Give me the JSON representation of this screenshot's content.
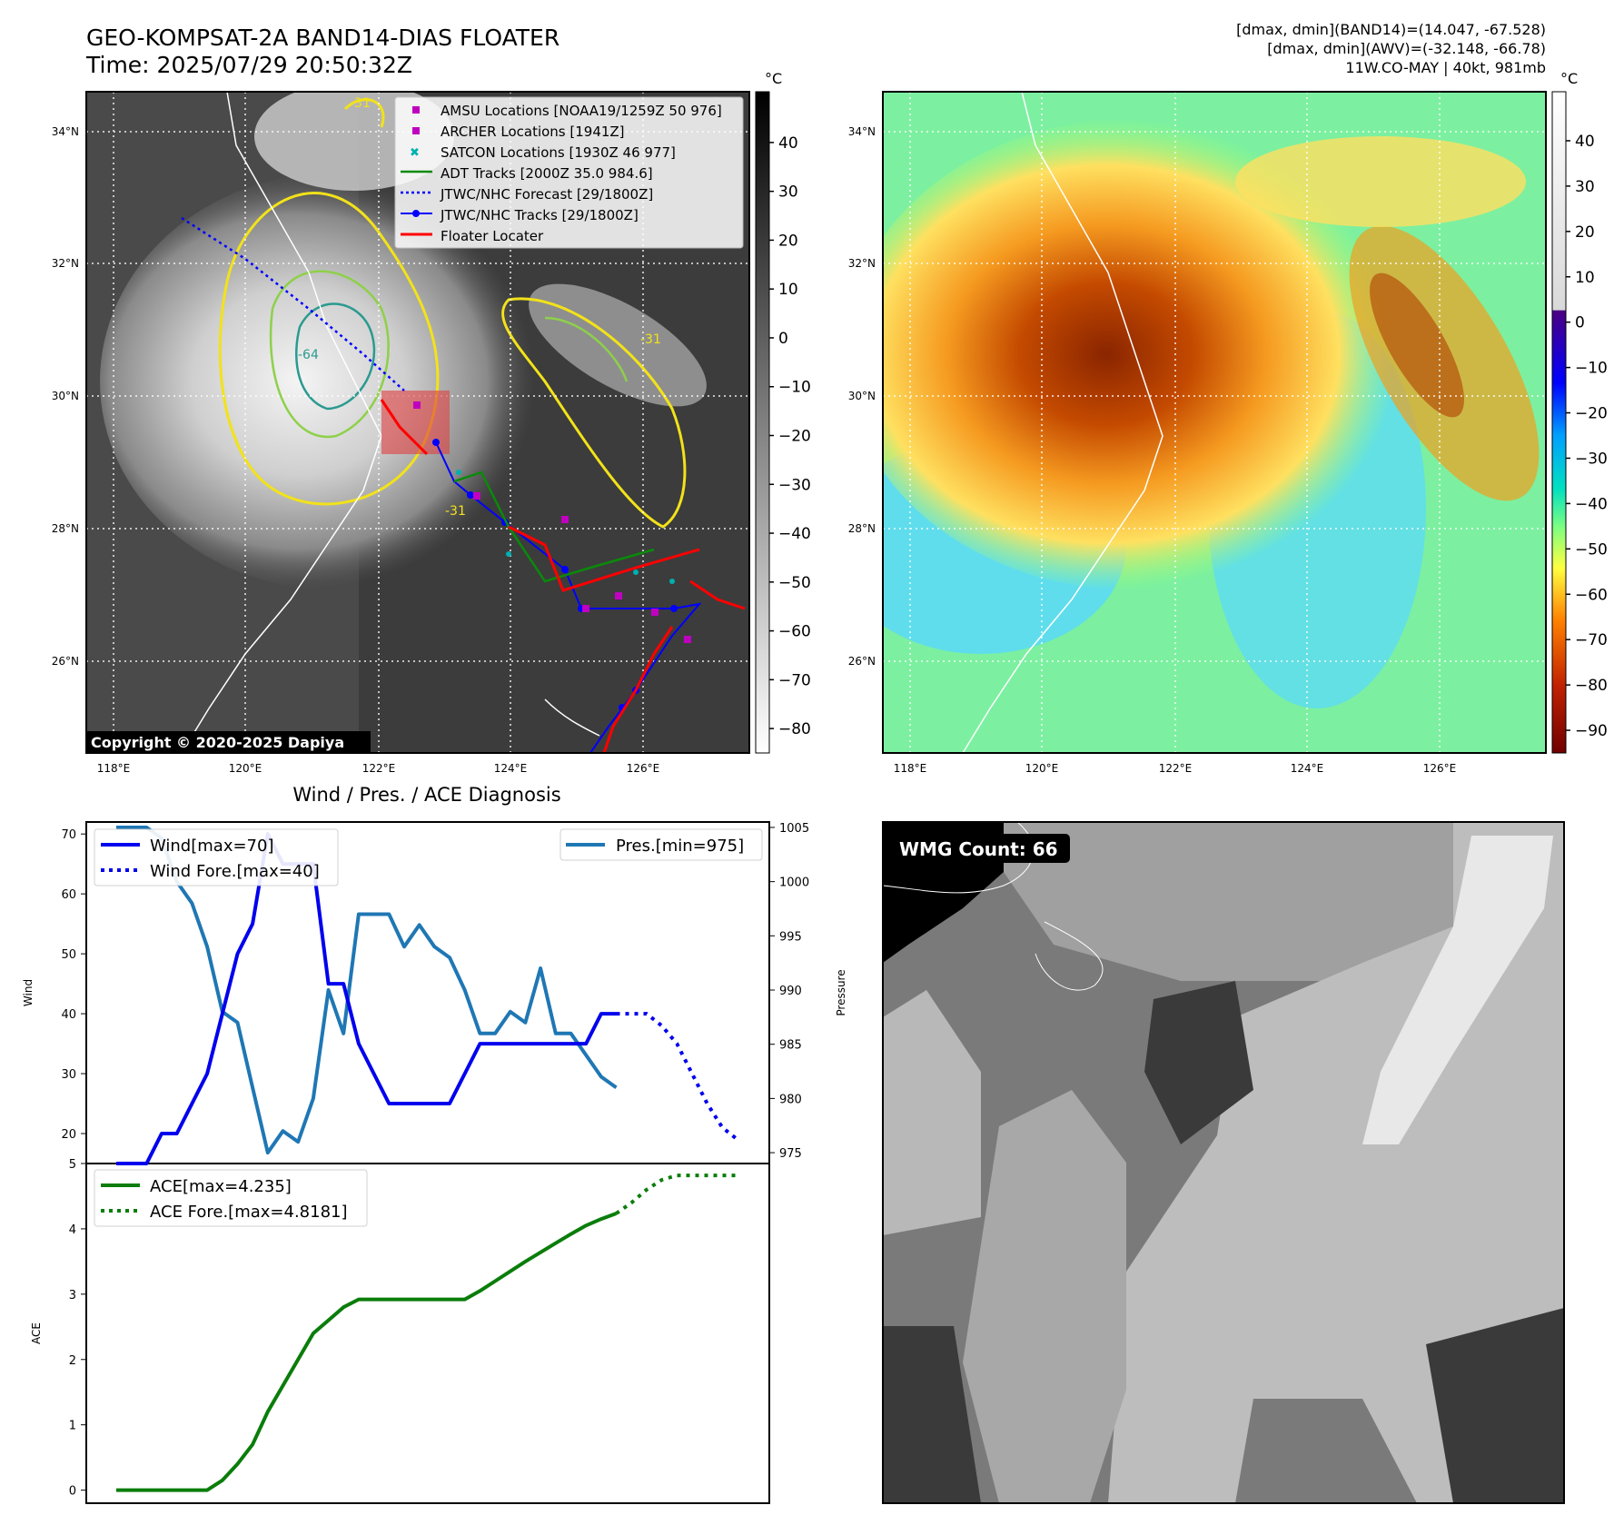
{
  "header": {
    "title": "GEO-KOMPSAT-2A BAND14-DIAS FLOATER",
    "time": "Time: 2025/07/29 20:50:32Z",
    "info_line1": "[dmax, dmin](BAND14)=(14.047, -67.528)",
    "info_line2": "[dmax, dmin](AWV)=(-32.148, -66.78)",
    "info_line3": "11W.CO-MAY | 40kt, 981mb"
  },
  "colors": {
    "wind": "#0000ee",
    "pressure": "#1f77b4",
    "ace": "#0a7d0a",
    "locator": "#ff0000",
    "amsu": "#c000c0",
    "satcon": "#00b0b0"
  },
  "map_left": {
    "cbar_unit": "°C",
    "cbar_ticks": [
      "40",
      "30",
      "20",
      "10",
      "0",
      "−10",
      "−20",
      "−30",
      "−40",
      "−50",
      "−60",
      "−70",
      "−80"
    ],
    "lat_labels": [
      "34°N",
      "32°N",
      "30°N",
      "28°N",
      "26°N"
    ],
    "lon_labels": [
      "118°E",
      "120°E",
      "122°E",
      "124°E",
      "126°E"
    ],
    "copyright": "Copyright © 2020-2025 Dapiya",
    "contour_labels": [
      "-31",
      "-31",
      "-31",
      "-64"
    ],
    "legend": [
      {
        "label": "AMSU Locations [NOAA19/1259Z 50 976]",
        "icon": "square-marker"
      },
      {
        "label": "ARCHER Locations [1941Z]",
        "icon": "square-marker"
      },
      {
        "label": "SATCON Locations [1930Z 46 977]",
        "icon": "x-marker"
      },
      {
        "label": "ADT Tracks [2000Z 35.0 984.6]",
        "icon": "solid-line"
      },
      {
        "label": "JTWC/NHC Forecast [29/1800Z]",
        "icon": "dotted-line"
      },
      {
        "label": "JTWC/NHC Tracks [29/1800Z]",
        "icon": "line-dot"
      },
      {
        "label": "Floater Locater",
        "icon": "solid-line"
      }
    ]
  },
  "map_right": {
    "cbar_unit": "°C",
    "cbar_ticks": [
      "40",
      "30",
      "20",
      "10",
      "0",
      "−10",
      "−20",
      "−30",
      "−40",
      "−50",
      "−60",
      "−70",
      "−80",
      "−90"
    ],
    "lat_labels": [
      "34°N",
      "32°N",
      "30°N",
      "28°N",
      "26°N"
    ],
    "lon_labels": [
      "118°E",
      "120°E",
      "122°E",
      "124°E",
      "126°E"
    ]
  },
  "diagnosis": {
    "title": "Wind / Pres. / ACE Diagnosis",
    "wind_ylabel": "Wind",
    "pres_ylabel": "Pressure",
    "ace_ylabel": "ACE",
    "wind_ticks": [
      "70",
      "60",
      "50",
      "40",
      "30",
      "20"
    ],
    "pres_ticks": [
      "1005",
      "1000",
      "995",
      "990",
      "985",
      "980",
      "975"
    ],
    "ace_ticks": [
      "5",
      "4",
      "3",
      "2",
      "1",
      "0"
    ]
  },
  "wmg": {
    "label": "WMG Count: 66"
  },
  "chart_data": [
    {
      "type": "line",
      "title": "",
      "xlabel": "",
      "ylabel": "Wind",
      "ylim": [
        15,
        72
      ],
      "y2label": "Pressure",
      "y2lim": [
        974,
        1005.5
      ],
      "x": [
        0,
        1,
        2,
        3,
        4,
        5,
        6,
        7,
        8,
        9,
        10,
        11,
        12,
        13,
        14,
        15,
        16,
        17,
        18,
        19,
        20,
        21,
        22,
        23,
        24,
        25,
        26,
        27,
        28,
        29,
        30,
        31,
        32,
        33,
        34,
        35,
        36,
        37,
        38,
        39,
        40,
        41
      ],
      "series": [
        {
          "name": "Wind[max=70]",
          "axis": "left",
          "x": [
            0,
            1,
            2,
            3,
            4,
            5,
            6,
            7,
            8,
            9,
            10,
            11,
            12,
            13,
            14,
            15,
            16,
            17,
            18,
            19,
            20,
            21,
            22,
            23,
            24,
            25,
            26,
            27,
            28,
            29,
            30,
            31,
            32,
            33
          ],
          "values": [
            15,
            15,
            15,
            20,
            20,
            25,
            30,
            40,
            50,
            55,
            70,
            65,
            65,
            65,
            45,
            45,
            35,
            30,
            25,
            25,
            25,
            25,
            25,
            30,
            35,
            35,
            35,
            35,
            35,
            35,
            35,
            35,
            40,
            40
          ]
        },
        {
          "name": "Wind Fore.[max=40]",
          "axis": "left",
          "style": "dotted",
          "x": [
            33,
            34,
            35,
            36,
            37,
            38,
            39,
            40,
            41
          ],
          "values": [
            40,
            40,
            40,
            38,
            35,
            30,
            25,
            21,
            19
          ]
        },
        {
          "name": "Pres.[min=975]",
          "axis": "right",
          "x": [
            0,
            1,
            2,
            3,
            4,
            5,
            6,
            7,
            8,
            9,
            10,
            11,
            12,
            13,
            14,
            15,
            16,
            17,
            18,
            19,
            20,
            21,
            22,
            23,
            24,
            25,
            26,
            27,
            28,
            29,
            30,
            31,
            32,
            33
          ],
          "values": [
            1005,
            1005,
            1005,
            1004,
            1000,
            998,
            994,
            988,
            987,
            981,
            975,
            977,
            976,
            980,
            990,
            986,
            997,
            997,
            997,
            994,
            996,
            994,
            993,
            990,
            986,
            986,
            988,
            987,
            992,
            986,
            986,
            984,
            982,
            981
          ]
        }
      ]
    },
    {
      "type": "line",
      "title": "",
      "xlabel": "",
      "ylabel": "ACE",
      "ylim": [
        -0.2,
        5
      ],
      "x": [
        0,
        1,
        2,
        3,
        4,
        5,
        6,
        7,
        8,
        9,
        10,
        11,
        12,
        13,
        14,
        15,
        16,
        17,
        18,
        19,
        20,
        21,
        22,
        23,
        24,
        25,
        26,
        27,
        28,
        29,
        30,
        31,
        32,
        33,
        34,
        35,
        36,
        37,
        38,
        39,
        40,
        41
      ],
      "series": [
        {
          "name": "ACE[max=4.235]",
          "x": [
            0,
            1,
            2,
            3,
            4,
            5,
            6,
            7,
            8,
            9,
            10,
            11,
            12,
            13,
            14,
            15,
            16,
            17,
            18,
            19,
            20,
            21,
            22,
            23,
            24,
            25,
            26,
            27,
            28,
            29,
            30,
            31,
            32,
            33
          ],
          "values": [
            0,
            0,
            0,
            0,
            0,
            0,
            0,
            0.15,
            0.4,
            0.7,
            1.2,
            1.6,
            2.0,
            2.4,
            2.6,
            2.8,
            2.92,
            2.92,
            2.92,
            2.92,
            2.92,
            2.92,
            2.92,
            2.92,
            3.05,
            3.2,
            3.35,
            3.5,
            3.64,
            3.78,
            3.92,
            4.05,
            4.15,
            4.235
          ]
        },
        {
          "name": "ACE Fore.[max=4.8181]",
          "style": "dotted",
          "x": [
            33,
            34,
            35,
            36,
            37,
            38,
            39,
            40,
            41
          ],
          "values": [
            4.235,
            4.4,
            4.6,
            4.75,
            4.8181,
            4.8181,
            4.8181,
            4.8181,
            4.8181
          ]
        }
      ]
    }
  ]
}
